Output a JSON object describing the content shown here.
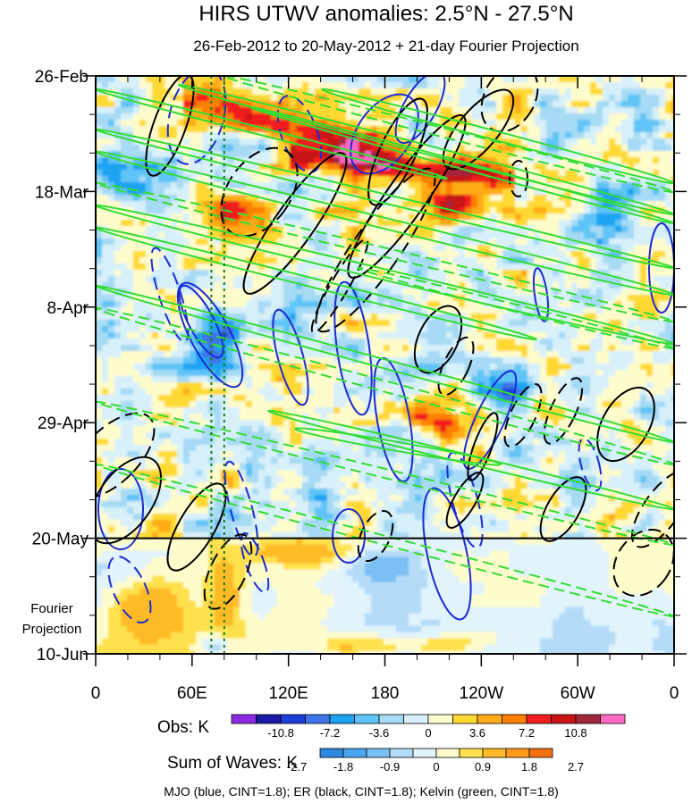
{
  "chart_data": {
    "type": "heatmap",
    "title": "HIRS UTWV anomalies: 2.5°N - 27.5°N",
    "subtitle": "26-Feb-2012 to 20-May-2012 + 21-day Fourier Projection",
    "x_tick_labels": [
      "0",
      "60E",
      "120E",
      "180",
      "120W",
      "60W",
      "0"
    ],
    "x_tick_values_deg_east": [
      0,
      60,
      120,
      180,
      240,
      300,
      360
    ],
    "y_tick_labels": [
      "26-Feb",
      "18-Mar",
      "8-Apr",
      "29-Apr",
      "20-May",
      "10-Jun"
    ],
    "y_tick_dates": [
      "2012-02-26",
      "2012-03-18",
      "2012-04-08",
      "2012-04-29",
      "2012-05-20",
      "2012-06-10"
    ],
    "projection_start_date": "2012-05-20",
    "projection_label": [
      "Fourier",
      "Projection"
    ],
    "reference_lines_deg_east": [
      72,
      80
    ],
    "obs_colorbar": {
      "label": "Obs: K",
      "tick_labels": [
        "-10.8",
        "-7.2",
        "-3.6",
        "0",
        "3.6",
        "7.2",
        "10.8"
      ],
      "colors": [
        "#8a2be2",
        "#1a1aa6",
        "#1c3fd9",
        "#3d74e8",
        "#1ea3f2",
        "#5fc4f7",
        "#a6daf5",
        "#d7f0fa",
        "#fffccc",
        "#ffd933",
        "#ffab19",
        "#ff7f00",
        "#f21f1f",
        "#c81414",
        "#a0283c",
        "#ff69c4"
      ]
    },
    "waves_colorbar": {
      "label": "Sum of Waves: K",
      "tick_labels": [
        "-2.7",
        "-1.8",
        "-0.9",
        "0",
        "0.9",
        "1.8",
        "2.7"
      ],
      "colors": [
        "#2d88e0",
        "#4aa6ee",
        "#79bff4",
        "#b4dcf8",
        "#e1f3fb",
        "#fffccc",
        "#ffe14d",
        "#ffbb26",
        "#ff9a1a",
        "#f27010"
      ]
    },
    "legend": "MJO (blue, CINT=1.8); ER (black, CINT=1.8); Kelvin (green, CINT=1.8)",
    "wave_colors": {
      "MJO": "#1c2ad1",
      "ER": "#000000",
      "Kelvin": "#33dd33"
    }
  }
}
